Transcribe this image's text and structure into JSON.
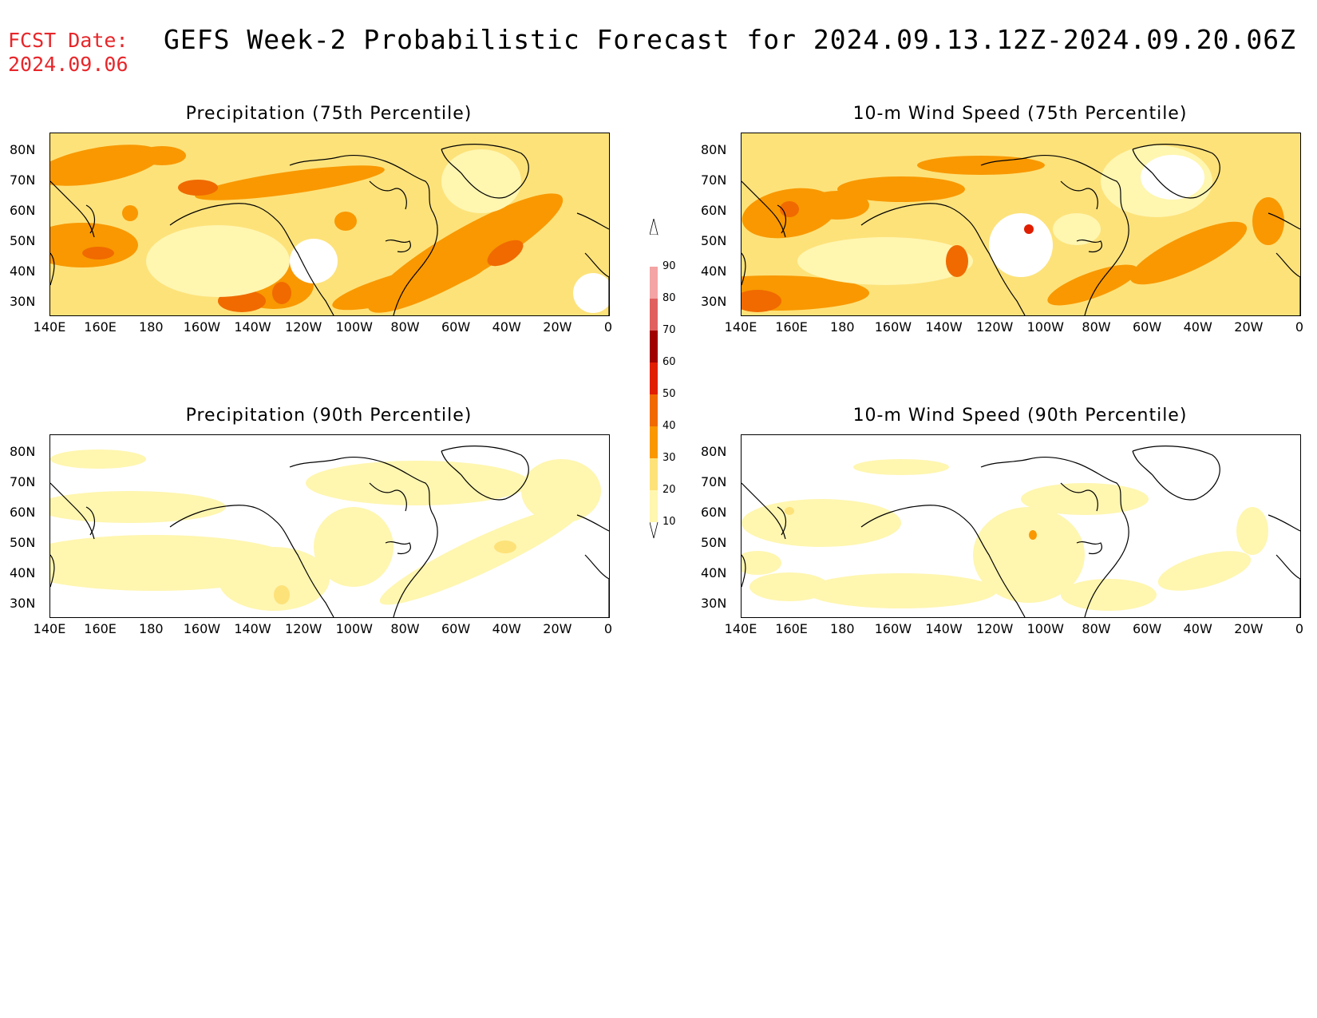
{
  "header": {
    "fcst_label": "FCST Date:",
    "fcst_date": "2024.09.06",
    "title": "GEFS Week-2 Probabilistic Forecast for 2024.09.13.12Z-2024.09.20.06Z"
  },
  "axes": {
    "lat_labels": [
      "80N",
      "70N",
      "60N",
      "50N",
      "40N",
      "30N"
    ],
    "lon_labels": [
      "140E",
      "160E",
      "180",
      "160W",
      "140W",
      "120W",
      "100W",
      "80W",
      "60W",
      "40W",
      "20W",
      "0"
    ]
  },
  "panels": [
    {
      "title": "Precipitation (75th Percentile)",
      "level": "high",
      "variable": "precip"
    },
    {
      "title": "10-m Wind Speed (75th Percentile)",
      "level": "high",
      "variable": "wind"
    },
    {
      "title": "Precipitation (90th Percentile)",
      "level": "low",
      "variable": "precip"
    },
    {
      "title": "10-m Wind Speed (90th Percentile)",
      "level": "low",
      "variable": "wind"
    }
  ],
  "colorbar": {
    "labels": [
      "90",
      "80",
      "70",
      "60",
      "50",
      "40",
      "30",
      "20",
      "10"
    ],
    "colors": [
      "#ffffff",
      "#f4a4a4",
      "#e06060",
      "#a00000",
      "#e01e00",
      "#f06a00",
      "#f99800",
      "#fde27a",
      "#fff6b0"
    ]
  },
  "palette": {
    "c10": "#fff6b0",
    "c20": "#fde27a",
    "c30": "#f99800",
    "c40": "#f06a00",
    "c50": "#e01e00",
    "title_red": "#e8262a"
  }
}
